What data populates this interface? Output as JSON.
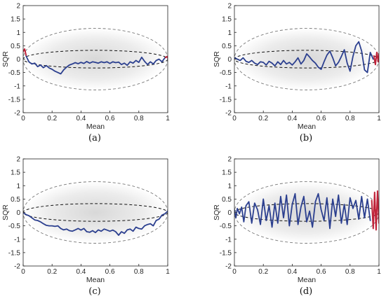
{
  "chart_data": [
    {
      "type": "line",
      "panel_label": "(a)",
      "xlabel": "Mean",
      "ylabel": "SQR",
      "xlim": [
        0,
        1
      ],
      "ylim": [
        -2,
        2
      ],
      "x_ticks": [
        "0",
        "0.2",
        "0.4",
        "0.6",
        "0.8",
        "1"
      ],
      "y_ticks": [
        "2",
        "1.5",
        "1",
        "0.5",
        "0",
        "-0.5",
        "-1",
        "-1.5",
        "-2"
      ],
      "grid": false,
      "outer_ellipse": {
        "cx": 0.5,
        "cy": 0,
        "rx": 0.5,
        "ry": 1.15
      },
      "inner_ellipse": {
        "cx": 0.5,
        "cy": 0,
        "rx": 0.5,
        "ry": 0.33
      },
      "series": [
        {
          "color": "#2b3f8f",
          "x": [
            0.02,
            0.04,
            0.06,
            0.08,
            0.1,
            0.12,
            0.14,
            0.16,
            0.18,
            0.2,
            0.22,
            0.24,
            0.26,
            0.28,
            0.3,
            0.32,
            0.34,
            0.36,
            0.38,
            0.4,
            0.42,
            0.44,
            0.46,
            0.48,
            0.5,
            0.52,
            0.54,
            0.56,
            0.58,
            0.6,
            0.62,
            0.64,
            0.66,
            0.68,
            0.7,
            0.72,
            0.74,
            0.76,
            0.78,
            0.8,
            0.82,
            0.84,
            0.86,
            0.88,
            0.9,
            0.92,
            0.94,
            0.96,
            0.98
          ],
          "y": [
            0.12,
            -0.1,
            -0.18,
            -0.15,
            -0.28,
            -0.22,
            -0.32,
            -0.24,
            -0.33,
            -0.38,
            -0.45,
            -0.5,
            -0.55,
            -0.4,
            -0.3,
            -0.22,
            -0.18,
            -0.13,
            -0.17,
            -0.12,
            -0.16,
            -0.09,
            -0.15,
            -0.1,
            -0.12,
            -0.15,
            -0.1,
            -0.13,
            -0.1,
            -0.16,
            -0.1,
            -0.13,
            -0.11,
            -0.2,
            -0.15,
            -0.23,
            -0.1,
            -0.15,
            -0.05,
            -0.12,
            0.07,
            -0.08,
            -0.2,
            -0.1,
            -0.18,
            -0.05,
            0.0,
            -0.1,
            0.05
          ]
        },
        {
          "color": "#c0233a",
          "x": [
            0.0,
            0.01,
            0.02
          ],
          "y": [
            0.28,
            0.38,
            0.15
          ]
        },
        {
          "color": "#c0233a",
          "x": [
            0.985,
            0.995,
            1.0
          ],
          "y": [
            0.06,
            0.1,
            0.04
          ]
        }
      ]
    },
    {
      "type": "line",
      "panel_label": "(b)",
      "xlabel": "Mean",
      "ylabel": "SQR",
      "xlim": [
        0,
        1
      ],
      "ylim": [
        -2,
        2
      ],
      "x_ticks": [
        "0",
        "0.2",
        "0.4",
        "0.6",
        "0.8",
        "1"
      ],
      "y_ticks": [
        "2",
        "1.5",
        "1",
        "0.5",
        "0",
        "-0.5",
        "-1",
        "-1.5",
        "-2"
      ],
      "grid": false,
      "outer_ellipse": {
        "cx": 0.5,
        "cy": 0,
        "rx": 0.5,
        "ry": 1.15
      },
      "inner_ellipse": {
        "cx": 0.5,
        "cy": 0,
        "rx": 0.5,
        "ry": 0.33
      },
      "series": [
        {
          "color": "#2b3f8f",
          "x": [
            0.0,
            0.02,
            0.04,
            0.06,
            0.08,
            0.1,
            0.12,
            0.14,
            0.16,
            0.18,
            0.2,
            0.22,
            0.24,
            0.26,
            0.28,
            0.3,
            0.32,
            0.34,
            0.36,
            0.38,
            0.4,
            0.42,
            0.44,
            0.46,
            0.48,
            0.5,
            0.52,
            0.54,
            0.56,
            0.58,
            0.6,
            0.62,
            0.64,
            0.66,
            0.68,
            0.7,
            0.72,
            0.74,
            0.76,
            0.78,
            0.8,
            0.82,
            0.84,
            0.86,
            0.88,
            0.9,
            0.92,
            0.94,
            0.96
          ],
          "y": [
            0.05,
            0.0,
            -0.05,
            0.05,
            -0.08,
            -0.12,
            -0.05,
            -0.15,
            -0.2,
            -0.1,
            -0.12,
            -0.22,
            -0.08,
            -0.15,
            -0.25,
            -0.1,
            -0.2,
            -0.05,
            -0.18,
            -0.12,
            -0.22,
            -0.1,
            0.05,
            -0.18,
            -0.05,
            0.2,
            0.08,
            -0.05,
            -0.15,
            -0.3,
            -0.38,
            -0.1,
            0.15,
            0.3,
            0.05,
            -0.25,
            -0.12,
            0.1,
            0.35,
            -0.15,
            -0.45,
            0.1,
            0.5,
            0.65,
            0.3,
            -0.4,
            -0.5,
            0.25,
            0.0
          ]
        },
        {
          "color": "#c0233a",
          "x": [
            0.965,
            0.975,
            0.985,
            0.995,
            1.0
          ],
          "y": [
            0.12,
            -0.2,
            0.25,
            -0.1,
            0.2
          ]
        }
      ]
    },
    {
      "type": "line",
      "panel_label": "(c)",
      "xlabel": "Mean",
      "ylabel": "SQR",
      "xlim": [
        0,
        1
      ],
      "ylim": [
        -2,
        2
      ],
      "x_ticks": [
        "0",
        "0.2",
        "0.4",
        "0.6",
        "0.8",
        "1"
      ],
      "y_ticks": [
        "2",
        "1.5",
        "1",
        "0.5",
        "0",
        "-0.5",
        "-1",
        "-1.5",
        "-2"
      ],
      "grid": false,
      "outer_ellipse": {
        "cx": 0.5,
        "cy": 0,
        "rx": 0.5,
        "ry": 1.15
      },
      "inner_ellipse": {
        "cx": 0.5,
        "cy": 0,
        "rx": 0.5,
        "ry": 0.33
      },
      "series": [
        {
          "color": "#2b3f8f",
          "x": [
            0.0,
            0.02,
            0.04,
            0.06,
            0.08,
            0.1,
            0.12,
            0.14,
            0.16,
            0.18,
            0.2,
            0.22,
            0.24,
            0.26,
            0.28,
            0.3,
            0.32,
            0.34,
            0.36,
            0.38,
            0.4,
            0.42,
            0.44,
            0.46,
            0.48,
            0.5,
            0.52,
            0.54,
            0.56,
            0.58,
            0.6,
            0.62,
            0.64,
            0.66,
            0.68,
            0.7,
            0.72,
            0.74,
            0.76,
            0.78,
            0.8,
            0.82,
            0.84,
            0.86,
            0.88,
            0.9,
            0.92,
            0.94,
            0.96,
            0.98,
            1.0
          ],
          "y": [
            0.0,
            -0.08,
            -0.12,
            -0.2,
            -0.28,
            -0.3,
            -0.35,
            -0.42,
            -0.48,
            -0.5,
            -0.5,
            -0.52,
            -0.5,
            -0.6,
            -0.65,
            -0.62,
            -0.68,
            -0.7,
            -0.65,
            -0.6,
            -0.66,
            -0.6,
            -0.72,
            -0.74,
            -0.68,
            -0.75,
            -0.65,
            -0.7,
            -0.62,
            -0.66,
            -0.7,
            -0.66,
            -0.72,
            -0.85,
            -0.72,
            -0.78,
            -0.65,
            -0.62,
            -0.7,
            -0.55,
            -0.6,
            -0.62,
            -0.5,
            -0.45,
            -0.42,
            -0.5,
            -0.3,
            -0.25,
            -0.1,
            -0.05,
            0.05
          ]
        }
      ]
    },
    {
      "type": "line",
      "panel_label": "(d)",
      "xlabel": "Mean",
      "ylabel": "SQR",
      "xlim": [
        0,
        1
      ],
      "ylim": [
        -2,
        2
      ],
      "x_ticks": [
        "0",
        "0.2",
        "0.4",
        "0.6",
        "0.8",
        "1"
      ],
      "y_ticks": [
        "2",
        "1.5",
        "1",
        "0.5",
        "0",
        "-0.5",
        "-1",
        "-1.5",
        "-2"
      ],
      "grid": false,
      "outer_ellipse": {
        "cx": 0.5,
        "cy": 0,
        "rx": 0.5,
        "ry": 1.15
      },
      "inner_ellipse": {
        "cx": 0.5,
        "cy": 0,
        "rx": 0.5,
        "ry": 0.33
      },
      "series": [
        {
          "color": "#2b3f8f",
          "x": [
            0.0,
            0.01,
            0.02,
            0.035,
            0.05,
            0.065,
            0.08,
            0.1,
            0.12,
            0.14,
            0.16,
            0.18,
            0.2,
            0.22,
            0.24,
            0.26,
            0.28,
            0.3,
            0.32,
            0.34,
            0.36,
            0.38,
            0.4,
            0.42,
            0.44,
            0.46,
            0.48,
            0.5,
            0.52,
            0.54,
            0.56,
            0.58,
            0.6,
            0.62,
            0.64,
            0.66,
            0.68,
            0.7,
            0.72,
            0.74,
            0.76,
            0.78,
            0.8,
            0.82,
            0.84,
            0.86,
            0.88,
            0.9,
            0.92,
            0.94
          ],
          "y": [
            0.1,
            -0.2,
            0.15,
            -0.05,
            0.2,
            -0.35,
            0.25,
            0.4,
            -0.4,
            0.35,
            0.1,
            -0.45,
            0.5,
            -0.3,
            0.25,
            -0.55,
            0.35,
            -0.4,
            0.6,
            -0.2,
            0.65,
            -0.5,
            0.3,
            0.7,
            -0.45,
            0.2,
            0.6,
            -0.35,
            0.05,
            -0.55,
            0.4,
            0.7,
            0.1,
            -0.3,
            0.55,
            -0.6,
            0.5,
            -0.15,
            0.65,
            -0.4,
            0.3,
            -0.45,
            0.55,
            0.15,
            0.45,
            -0.25,
            0.6,
            -0.2,
            0.5,
            -0.3
          ]
        },
        {
          "color": "#c0233a",
          "x": [
            0.95,
            0.96,
            0.97,
            0.98,
            0.99,
            1.0
          ],
          "y": [
            0.45,
            -0.6,
            0.75,
            -0.65,
            0.8,
            -0.4
          ]
        }
      ]
    }
  ]
}
